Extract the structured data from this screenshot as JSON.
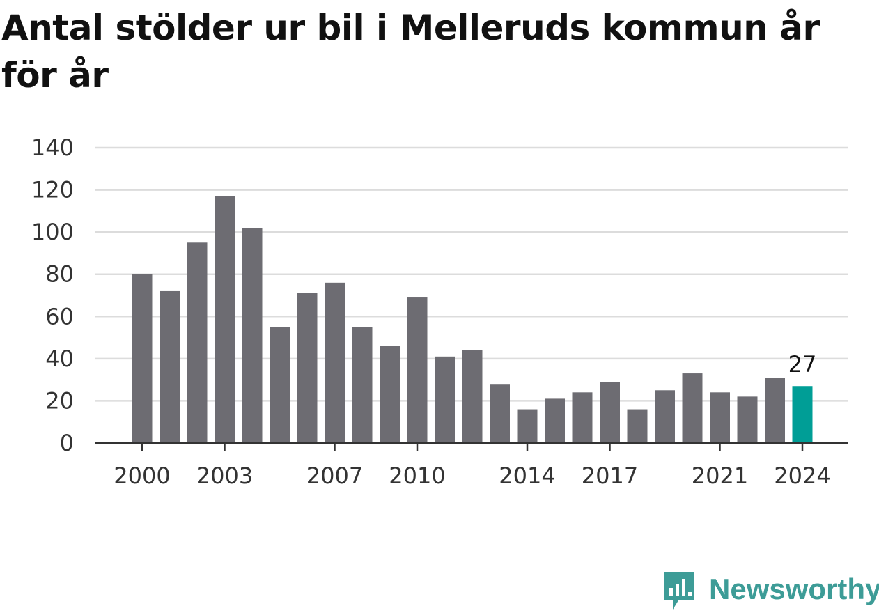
{
  "title": "Antal stölder ur bil i Melleruds kommun år för år",
  "brand": {
    "name": "Newsworthy",
    "icon": "newsworthy-logo-icon",
    "color": "#3d9c97"
  },
  "colors": {
    "bar": "#6d6c72",
    "highlight": "#009e96",
    "grid": "#dcdcdc",
    "axis": "#333333"
  },
  "chart_data": {
    "type": "bar",
    "title": "Antal stölder ur bil i Melleruds kommun år för år",
    "xlabel": "",
    "ylabel": "",
    "categories": [
      "2000",
      "2001",
      "2002",
      "2003",
      "2004",
      "2005",
      "2006",
      "2007",
      "2008",
      "2009",
      "2010",
      "2011",
      "2012",
      "2013",
      "2014",
      "2015",
      "2016",
      "2017",
      "2018",
      "2019",
      "2020",
      "2021",
      "2022",
      "2023",
      "2024"
    ],
    "values": [
      80,
      72,
      95,
      117,
      102,
      55,
      71,
      76,
      55,
      46,
      69,
      41,
      44,
      28,
      16,
      21,
      24,
      29,
      16,
      25,
      33,
      24,
      22,
      31,
      27
    ],
    "x_tick_labels": [
      "2000",
      "2003",
      "2007",
      "2010",
      "2014",
      "2017",
      "2021",
      "2024"
    ],
    "y_ticks": [
      0,
      20,
      40,
      60,
      80,
      100,
      120,
      140
    ],
    "ylim": [
      0,
      140
    ],
    "grid": true,
    "legend": "none",
    "highlight": {
      "category": "2024",
      "label": "27"
    }
  }
}
